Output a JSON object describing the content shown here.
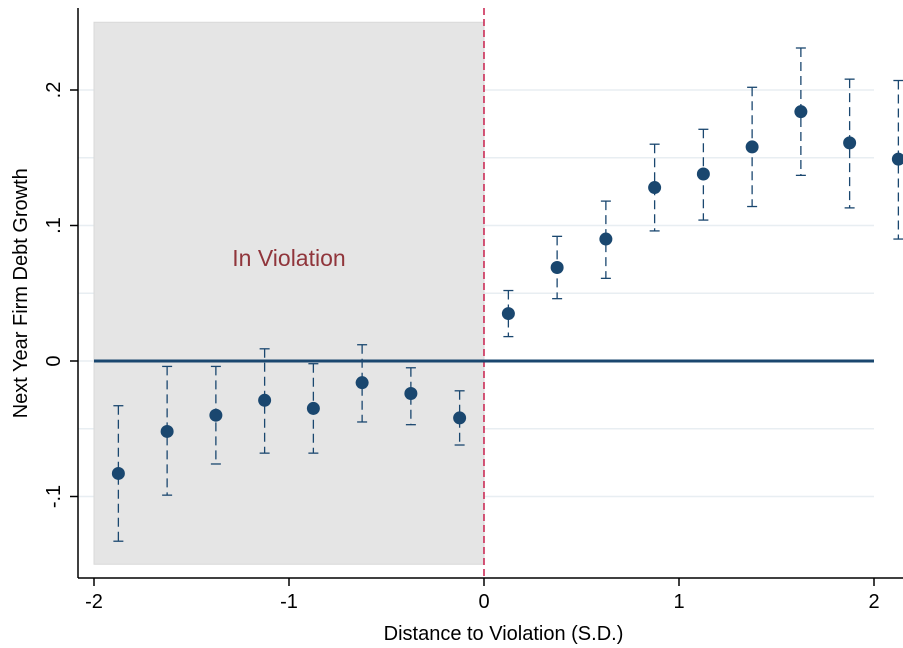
{
  "chart_data": {
    "type": "scatter",
    "subtype": "point estimates with 95% confidence intervals",
    "title": "",
    "xlabel": "Distance to Violation (S.D.)",
    "ylabel": "Next Year Firm Debt Growth",
    "xlim": [
      -2,
      2.1
    ],
    "ylim": [
      -0.155,
      0.26
    ],
    "x_ticks": [
      -2,
      -1,
      0,
      1,
      2
    ],
    "x_tick_labels": [
      "-2",
      "-1",
      "0",
      "1",
      "2"
    ],
    "y_ticks": [
      -0.1,
      0,
      0.1,
      0.2
    ],
    "y_tick_labels": [
      "-.1",
      "0",
      ".1",
      ".2"
    ],
    "grid": true,
    "legend": "none",
    "shaded_region": {
      "x_from": -2,
      "x_to": 0,
      "y_from": -0.15,
      "y_to": 0.25,
      "label": "In Violation"
    },
    "vertical_line_x": 0,
    "horizontal_line_y": 0,
    "points": [
      {
        "x": -1.875,
        "y": -0.083,
        "lo": -0.133,
        "hi": -0.033
      },
      {
        "x": -1.625,
        "y": -0.052,
        "lo": -0.099,
        "hi": -0.004
      },
      {
        "x": -1.375,
        "y": -0.04,
        "lo": -0.076,
        "hi": -0.004
      },
      {
        "x": -1.125,
        "y": -0.029,
        "lo": -0.068,
        "hi": 0.009
      },
      {
        "x": -0.875,
        "y": -0.035,
        "lo": -0.068,
        "hi": -0.002
      },
      {
        "x": -0.625,
        "y": -0.016,
        "lo": -0.045,
        "hi": 0.012
      },
      {
        "x": -0.375,
        "y": -0.024,
        "lo": -0.047,
        "hi": -0.005
      },
      {
        "x": -0.125,
        "y": -0.042,
        "lo": -0.062,
        "hi": -0.022
      },
      {
        "x": 0.125,
        "y": 0.035,
        "lo": 0.018,
        "hi": 0.052
      },
      {
        "x": 0.375,
        "y": 0.069,
        "lo": 0.046,
        "hi": 0.092
      },
      {
        "x": 0.625,
        "y": 0.09,
        "lo": 0.061,
        "hi": 0.118
      },
      {
        "x": 0.875,
        "y": 0.128,
        "lo": 0.096,
        "hi": 0.16
      },
      {
        "x": 1.125,
        "y": 0.138,
        "lo": 0.104,
        "hi": 0.171
      },
      {
        "x": 1.375,
        "y": 0.158,
        "lo": 0.114,
        "hi": 0.202
      },
      {
        "x": 1.625,
        "y": 0.184,
        "lo": 0.137,
        "hi": 0.231
      },
      {
        "x": 1.875,
        "y": 0.161,
        "lo": 0.113,
        "hi": 0.208
      },
      {
        "x": 2.125,
        "y": 0.149,
        "lo": 0.09,
        "hi": 0.207
      }
    ],
    "colors": {
      "marker": "#1a476f",
      "zero_line": "#1a476f",
      "ci": "#1a476f",
      "shade": "#e5e5e5",
      "shade_border": "#d9d9d9",
      "grid": "#e8eef2",
      "vline": "#c81e4b",
      "annotation": "#90353b",
      "axis": "#000000"
    }
  }
}
